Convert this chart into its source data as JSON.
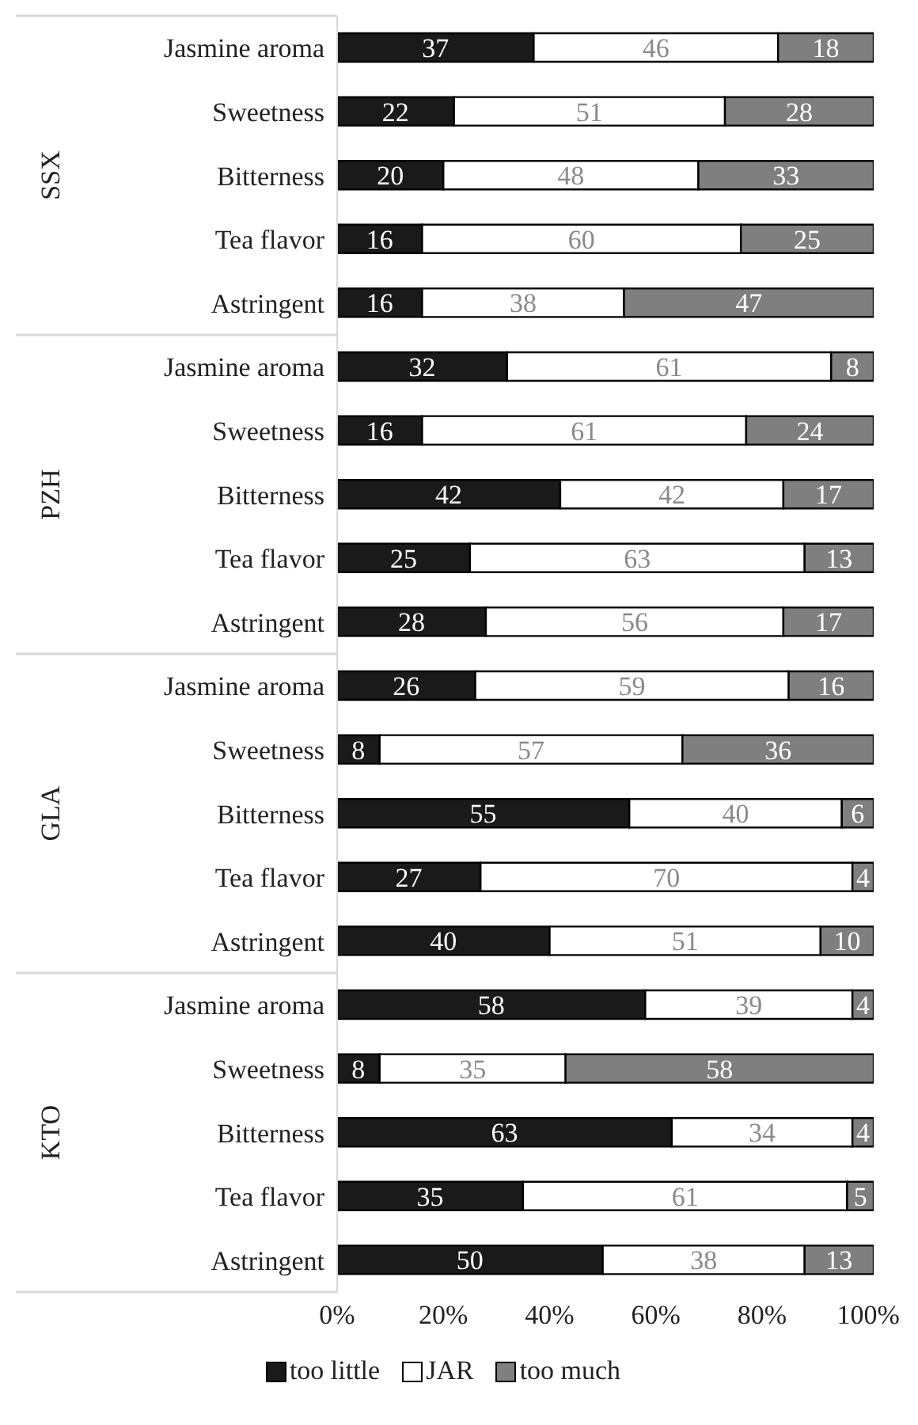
{
  "chart_data": {
    "type": "bar",
    "orientation": "horizontal",
    "stacked": true,
    "data_labels": true,
    "legend": "bottom",
    "grid": false,
    "categories": [
      "Jasmine aroma",
      "Sweetness",
      "Bitterness",
      "Tea flavor",
      "Astringent",
      "Jasmine aroma",
      "Sweetness",
      "Bitterness",
      "Tea flavor",
      "Astringent",
      "Jasmine aroma",
      "Sweetness",
      "Bitterness",
      "Tea flavor",
      "Astringent",
      "Jasmine aroma",
      "Sweetness",
      "Bitterness",
      "Tea flavor",
      "Astringent"
    ],
    "annotations": [
      "SSX",
      "PZH",
      "GLA",
      "KTO"
    ],
    "xlim": [
      0,
      101
    ],
    "xticks": [
      {
        "value": 0,
        "label": "0%"
      },
      {
        "value": 20,
        "label": "20%"
      },
      {
        "value": 40,
        "label": "40%"
      },
      {
        "value": 60,
        "label": "60%"
      },
      {
        "value": 80,
        "label": "80%"
      },
      {
        "value": 100,
        "label": "100%"
      }
    ],
    "series": [
      {
        "name": "too little",
        "color": "#1a1a1a",
        "values": [
          37,
          22,
          20,
          16,
          16,
          32,
          16,
          42,
          25,
          28,
          26,
          8,
          55,
          27,
          40,
          58,
          8,
          63,
          35,
          50
        ]
      },
      {
        "name": "JAR",
        "color": "#ffffff",
        "values": [
          46,
          51,
          48,
          60,
          38,
          61,
          61,
          42,
          63,
          56,
          59,
          57,
          40,
          70,
          51,
          39,
          35,
          34,
          61,
          38
        ]
      },
      {
        "name": "too much",
        "color": "#7f7f7f",
        "values": [
          18,
          28,
          33,
          25,
          47,
          8,
          24,
          17,
          13,
          17,
          16,
          36,
          6,
          4,
          10,
          4,
          58,
          4,
          5,
          13
        ]
      }
    ]
  }
}
